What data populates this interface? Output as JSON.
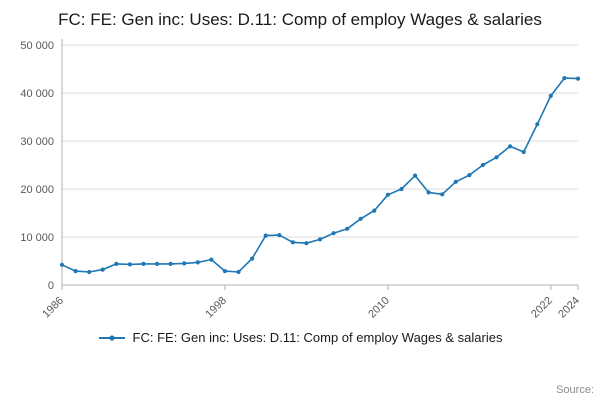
{
  "page": {
    "title": "FC: FE: Gen inc: Uses: D.11: Comp of employ Wages & salaries",
    "source_label": "Source:"
  },
  "legend": {
    "label": "FC: FE: Gen inc: Uses: D.11: Comp of employ Wages & salaries"
  },
  "chart_data": {
    "type": "line",
    "title": "FC: FE: Gen inc: Uses: D.11: Comp of employ Wages & salaries",
    "series_name": "FC: FE: Gen inc: Uses: D.11: Comp of employ Wages & salaries",
    "x": [
      1986,
      1987,
      1988,
      1989,
      1990,
      1991,
      1992,
      1993,
      1994,
      1995,
      1996,
      1997,
      1998,
      1999,
      2000,
      2001,
      2002,
      2003,
      2004,
      2005,
      2006,
      2007,
      2008,
      2009,
      2010,
      2011,
      2012,
      2013,
      2014,
      2015,
      2016,
      2017,
      2018,
      2019,
      2020,
      2021,
      2022,
      2023,
      2024
    ],
    "values": [
      4200,
      2900,
      2700,
      3200,
      4400,
      4300,
      4400,
      4400,
      4400,
      4500,
      4700,
      5300,
      2900,
      2700,
      5500,
      10300,
      10400,
      8900,
      8700,
      9500,
      10800,
      11700,
      13800,
      15500,
      18800,
      20000,
      22800,
      19300,
      18900,
      21500,
      22900,
      25000,
      26600,
      28900,
      27700,
      33500,
      39400,
      43100,
      43000
    ],
    "xlabel": "",
    "ylabel": "",
    "xlim": [
      1986,
      2024
    ],
    "ylim": [
      0,
      50000
    ],
    "y_ticks": [
      0,
      10000,
      20000,
      30000,
      40000,
      50000
    ],
    "y_tick_labels": [
      "0",
      "10 000",
      "20 000",
      "30 000",
      "40 000",
      "50 000"
    ],
    "x_tick_years": [
      1986,
      1998,
      2010,
      2022,
      2024
    ],
    "x_tick_labels": [
      "1986",
      "1998",
      "2010",
      "2022",
      "2024"
    ],
    "grid": "horizontal",
    "legend_position": "bottom",
    "line_color": "#1f77b4",
    "grid_color": "#dcdcdc",
    "axis_color": "#b0b0b0",
    "tick_label_color": "#595959"
  }
}
